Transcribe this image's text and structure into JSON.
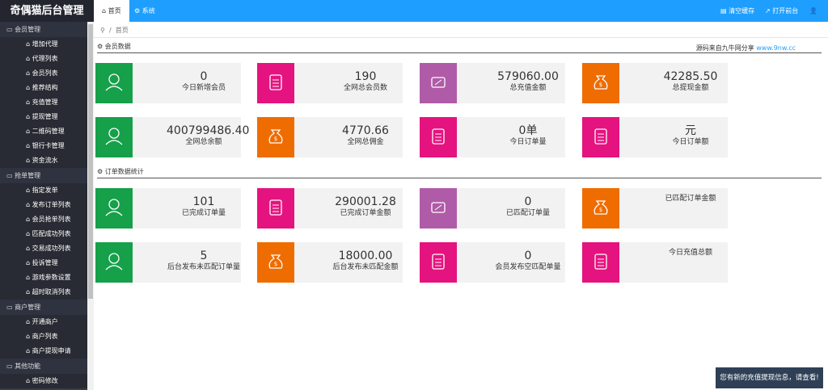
{
  "header": {
    "logo": "奇偶猫后台管理",
    "tabs": [
      "首页",
      "系统"
    ],
    "actions": [
      "清空缓存",
      "打开前台"
    ]
  },
  "sidebar": [
    {
      "group": "会员管理",
      "items": [
        "增加代理",
        "代理列表",
        "会员列表",
        "推荐结构",
        "充值管理",
        "提现管理",
        "二维码管理",
        "银行卡管理",
        "资金流水"
      ]
    },
    {
      "group": "抢单管理",
      "items": [
        "指定发单",
        "发布订单列表",
        "会员抢单列表",
        "匹配成功列表",
        "交易成功列表",
        "投诉管理",
        "游戏参数设置",
        "超时取消列表"
      ]
    },
    {
      "group": "商户管理",
      "items": [
        "开通商户",
        "商户列表",
        "商户提现申请"
      ]
    },
    {
      "group": "其他功能",
      "items": [
        "密码修改"
      ]
    }
  ],
  "breadcrumb": "首页",
  "source_note": {
    "text": "源码来自九牛网分享",
    "link": "www.9nw.cc"
  },
  "sections": [
    {
      "title": "会员数据",
      "cards": [
        {
          "value": "0",
          "label": "今日新增会员",
          "color": "#16a04a"
        },
        {
          "value": "190",
          "label": "全网总会员数",
          "color": "#e5137f"
        },
        {
          "value": "579060.00",
          "label": "总充值金额",
          "color": "#b05ba7"
        },
        {
          "value": "42285.50",
          "label": "总提现金额",
          "color": "#ef6c00"
        },
        {
          "value": "400799486.40",
          "label": "全网总余额",
          "color": "#16a04a"
        },
        {
          "value": "4770.66",
          "label": "全网总佣金",
          "color": "#ef6c00"
        },
        {
          "value": "0单",
          "label": "今日订单量",
          "color": "#e5137f"
        },
        {
          "value": "元",
          "label": "今日订单额",
          "color": "#e5137f"
        }
      ]
    },
    {
      "title": "订单数据统计",
      "cards": [
        {
          "value": "101",
          "label": "已完成订单量",
          "color": "#16a04a"
        },
        {
          "value": "290001.28",
          "label": "已完成订单金额",
          "color": "#e5137f"
        },
        {
          "value": "0",
          "label": "已匹配订单量",
          "color": "#b05ba7"
        },
        {
          "label": "已匹配订单金额",
          "color": "#ef6c00"
        },
        {
          "value": "5",
          "label": "后台发布未匹配订单量",
          "color": "#16a04a"
        },
        {
          "value": "18000.00",
          "label": "后台发布未匹配金额",
          "color": "#ef6c00"
        },
        {
          "value": "0",
          "label": "会员发布空匹配单量",
          "color": "#e5137f"
        },
        {
          "label": "今日充值总额",
          "color": "#e5137f"
        }
      ]
    }
  ],
  "toast": "您有新的充值提现信息，请查看!"
}
